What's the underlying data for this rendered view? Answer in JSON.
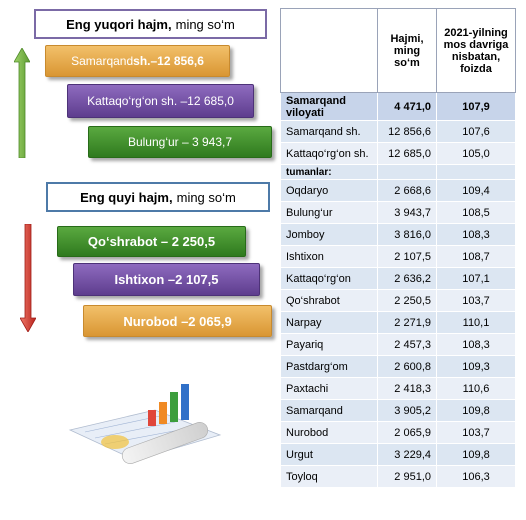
{
  "top": {
    "header_bold": "Eng yuqori hajm,",
    "header_rest": "ming so‘m",
    "bars": [
      {
        "label_a": "Samarqand",
        "label_b": " sh.–12 856,6"
      },
      {
        "label": "Kattaqo‘rg‘on sh. –12 685,0"
      },
      {
        "label": "Bulung‘ur – 3 943,7"
      }
    ]
  },
  "bottom": {
    "header_bold": "Eng quyi hajm,",
    "header_rest": "ming so‘m",
    "bars": [
      {
        "label": "Qo‘shrabot – 2 250,5"
      },
      {
        "label": "Ishtixon –2 107,5"
      },
      {
        "label": "Nurobod –2 065,9"
      }
    ]
  },
  "colors": {
    "arrow_up": "#6fae45",
    "arrow_down": "#d9302b"
  },
  "table": {
    "headers": [
      "",
      "Hajmi, ming so‘m",
      "2021-yilning mos davriga nisbatan, foizda"
    ],
    "region": {
      "name": "Samarqand viloyati",
      "volume": "4 471,0",
      "pct": "107,9"
    },
    "cities": [
      {
        "name": "Samarqand sh.",
        "volume": "12 856,6",
        "pct": "107,6"
      },
      {
        "name": "Kattaqo‘rg‘on sh.",
        "volume": "12 685,0",
        "pct": "105,0"
      }
    ],
    "subheader": "tumanlar:",
    "districts": [
      {
        "name": "Oqdaryo",
        "volume": "2 668,6",
        "pct": "109,4"
      },
      {
        "name": "Bulung‘ur",
        "volume": "3 943,7",
        "pct": "108,5"
      },
      {
        "name": "Jomboy",
        "volume": "3 816,0",
        "pct": "108,3"
      },
      {
        "name": "Ishtixon",
        "volume": "2 107,5",
        "pct": "108,7"
      },
      {
        "name": "Kattaqo‘rg‘on",
        "volume": "2 636,2",
        "pct": "107,1"
      },
      {
        "name": "Qo‘shrabot",
        "volume": "2 250,5",
        "pct": "103,7"
      },
      {
        "name": "Narpay",
        "volume": "2 271,9",
        "pct": "110,1"
      },
      {
        "name": "Payariq",
        "volume": "2 457,3",
        "pct": "108,3"
      },
      {
        "name": "Pastdarg‘om",
        "volume": "2 600,8",
        "pct": "109,3"
      },
      {
        "name": "Paxtachi",
        "volume": "2 418,3",
        "pct": "110,6"
      },
      {
        "name": "Samarqand",
        "volume": "3 905,2",
        "pct": "109,8"
      },
      {
        "name": "Nurobod",
        "volume": "2 065,9",
        "pct": "103,7"
      },
      {
        "name": "Urgut",
        "volume": "3 229,4",
        "pct": "109,8"
      },
      {
        "name": "Toyloq",
        "volume": "2 951,0",
        "pct": "106,3"
      }
    ]
  }
}
